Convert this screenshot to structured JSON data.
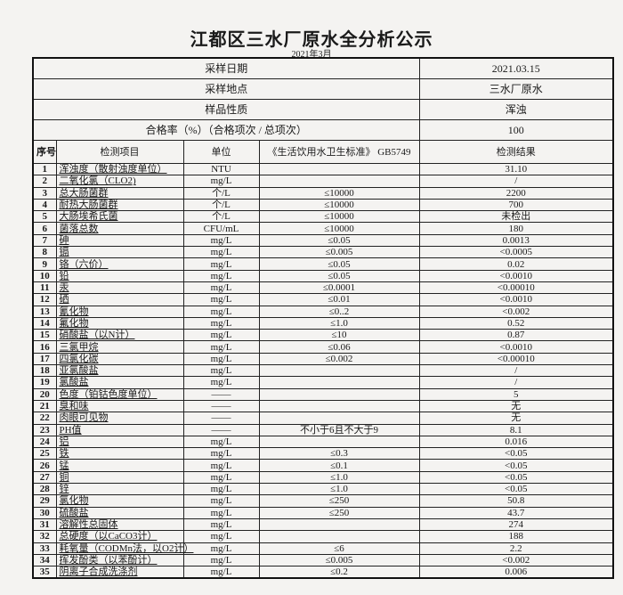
{
  "title": "江都区三水厂原水全分析公示",
  "subtitle": "2021年3月",
  "meta": [
    {
      "label": "采样日期",
      "value": "2021.03.15"
    },
    {
      "label": "采样地点",
      "value": "三水厂原水"
    },
    {
      "label": "样品性质",
      "value": "浑浊"
    },
    {
      "label": "合格率（%）（合格项次 / 总项次）",
      "value": "100"
    }
  ],
  "headers": {
    "no": "序号",
    "item": "检测项目",
    "unit": "单位",
    "standard": "《生活饮用水卫生标准》 GB5749",
    "result": "检测结果"
  },
  "rows": [
    {
      "no": "1",
      "item": "浑浊度（散射浊度单位）",
      "unit": "NTU",
      "standard": "",
      "result": "31.10"
    },
    {
      "no": "2",
      "item": "二氧化氯（CLO2)",
      "unit": "mg/L",
      "standard": "",
      "result": "/"
    },
    {
      "no": "3",
      "item": "总大肠菌群",
      "unit": "个/L",
      "standard": "≤10000",
      "result": "2200"
    },
    {
      "no": "4",
      "item": "耐热大肠菌群",
      "unit": "个/L",
      "standard": "≤10000",
      "result": "700"
    },
    {
      "no": "5",
      "item": "大肠埃希氏菌",
      "unit": "个/L",
      "standard": "≤10000",
      "result": "未检出"
    },
    {
      "no": "6",
      "item": "菌落总数",
      "unit": "CFU/mL",
      "standard": "≤10000",
      "result": "180"
    },
    {
      "no": "7",
      "item": "砷",
      "unit": "mg/L",
      "standard": "≤0.05",
      "result": "0.0013"
    },
    {
      "no": "8",
      "item": "镉",
      "unit": "mg/L",
      "standard": "≤0.005",
      "result": "<0.0005"
    },
    {
      "no": "9",
      "item": "铬（六价）",
      "unit": "mg/L",
      "standard": "≤0.05",
      "result": "0.02"
    },
    {
      "no": "10",
      "item": "铅",
      "unit": "mg/L",
      "standard": "≤0.05",
      "result": "<0.0010"
    },
    {
      "no": "11",
      "item": "汞",
      "unit": "mg/L",
      "standard": "≤0.0001",
      "result": "<0.00010"
    },
    {
      "no": "12",
      "item": "硒",
      "unit": "mg/L",
      "standard": "≤0.01",
      "result": "<0.0010"
    },
    {
      "no": "13",
      "item": "氰化物",
      "unit": "mg/L",
      "standard": "≤0..2",
      "result": "<0.002"
    },
    {
      "no": "14",
      "item": "氟化物",
      "unit": "mg/L",
      "standard": "≤1.0",
      "result": "0.52"
    },
    {
      "no": "15",
      "item": "硝酸盐（以N计）",
      "unit": "mg/L",
      "standard": "≤10",
      "result": "0.87"
    },
    {
      "no": "16",
      "item": "三氯甲烷",
      "unit": "mg/L",
      "standard": "≤0.06",
      "result": "<0.0010"
    },
    {
      "no": "17",
      "item": "四氯化碳",
      "unit": "mg/L",
      "standard": "≤0.002",
      "result": "<0.00010"
    },
    {
      "no": "18",
      "item": "亚氯酸盐",
      "unit": "mg/L",
      "standard": "",
      "result": "/"
    },
    {
      "no": "19",
      "item": "氯酸盐",
      "unit": "mg/L",
      "standard": "",
      "result": "/"
    },
    {
      "no": "20",
      "item": "色度（铂钴色度单位）",
      "unit": "——",
      "standard": "",
      "result": "5"
    },
    {
      "no": "21",
      "item": "臭和味",
      "unit": "——",
      "standard": "",
      "result": "无"
    },
    {
      "no": "22",
      "item": "肉眼可见物",
      "unit": "——",
      "standard": "",
      "result": "无"
    },
    {
      "no": "23",
      "item": "PH值",
      "unit": "——",
      "standard": "不小于6且不大于9",
      "result": "8.1"
    },
    {
      "no": "24",
      "item": "铝",
      "unit": "mg/L",
      "standard": "",
      "result": "0.016"
    },
    {
      "no": "25",
      "item": "铁",
      "unit": "mg/L",
      "standard": "≤0.3",
      "result": "<0.05"
    },
    {
      "no": "26",
      "item": "锰",
      "unit": "mg/L",
      "standard": "≤0.1",
      "result": "<0.05"
    },
    {
      "no": "27",
      "item": "铜",
      "unit": "mg/L",
      "standard": "≤1.0",
      "result": "<0.05"
    },
    {
      "no": "28",
      "item": "锌",
      "unit": "mg/L",
      "standard": "≤1.0",
      "result": "<0.05"
    },
    {
      "no": "29",
      "item": "氯化物",
      "unit": "mg/L",
      "standard": "≤250",
      "result": "50.8"
    },
    {
      "no": "30",
      "item": "硫酸盐",
      "unit": "mg/L",
      "standard": "≤250",
      "result": "43.7"
    },
    {
      "no": "31",
      "item": "溶解性总固体",
      "unit": "mg/L",
      "standard": "",
      "result": "274"
    },
    {
      "no": "32",
      "item": "总硬度（以CaCO3计）",
      "unit": "mg/L",
      "standard": "",
      "result": "188"
    },
    {
      "no": "33",
      "item": "耗氧量（CODMn法，以O2计）",
      "unit": "mg/L",
      "standard": "≤6",
      "result": "2.2"
    },
    {
      "no": "34",
      "item": "挥发酚类（以苯酚计）",
      "unit": "mg/L",
      "standard": "≤0.005",
      "result": "<0.002"
    },
    {
      "no": "35",
      "item": "阴离子合成洗涤剂",
      "unit": "mg/L",
      "standard": "≤0.2",
      "result": "0.006"
    }
  ]
}
